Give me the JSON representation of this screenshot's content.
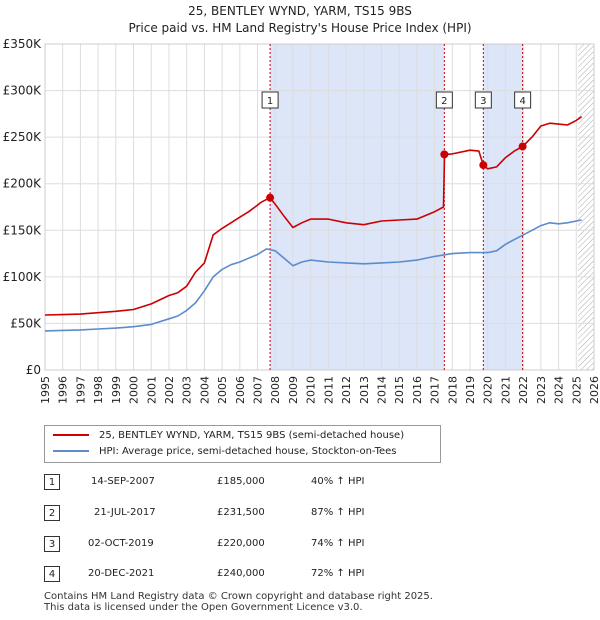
{
  "chart_data": {
    "type": "line",
    "title": "25, BENTLEY WYND, YARM, TS15 9BS",
    "subtitle": "Price paid vs. HM Land Registry's House Price Index (HPI)",
    "xlabel": "",
    "ylabel": "",
    "xlim": [
      1995,
      2026
    ],
    "ylim": [
      0,
      350000
    ],
    "y_ticks": [
      {
        "value": 0,
        "label": "£0"
      },
      {
        "value": 50000,
        "label": "£50K"
      },
      {
        "value": 100000,
        "label": "£100K"
      },
      {
        "value": 150000,
        "label": "£150K"
      },
      {
        "value": 200000,
        "label": "£200K"
      },
      {
        "value": 250000,
        "label": "£250K"
      },
      {
        "value": 300000,
        "label": "£300K"
      },
      {
        "value": 350000,
        "label": "£350K"
      }
    ],
    "x_ticks": [
      "1995",
      "1996",
      "1997",
      "1998",
      "1999",
      "2000",
      "2001",
      "2002",
      "2003",
      "2004",
      "2005",
      "2006",
      "2007",
      "2008",
      "2009",
      "2010",
      "2011",
      "2012",
      "2013",
      "2014",
      "2015",
      "2016",
      "2017",
      "2018",
      "2019",
      "2020",
      "2021",
      "2022",
      "2023",
      "2024",
      "2025",
      "2026"
    ],
    "grid": true,
    "series": [
      {
        "name": "25, BENTLEY WYND, YARM, TS15 9BS (semi-detached house)",
        "color": "#cc0000",
        "x": [
          1995,
          1996,
          1997,
          1998,
          1999,
          2000,
          2001,
          2002,
          2002.5,
          2003,
          2003.5,
          2004,
          2004.5,
          2005,
          2005.5,
          2006,
          2006.5,
          2007,
          2007.2,
          2007.7,
          2008,
          2008.5,
          2009,
          2009.5,
          2010,
          2011,
          2012,
          2013,
          2014,
          2015,
          2016,
          2017,
          2017.5,
          2017.56,
          2018,
          2019,
          2019.5,
          2019.75,
          2020,
          2020.5,
          2021,
          2021.5,
          2021.97,
          2022.5,
          2023,
          2023.5,
          2024,
          2024.5,
          2025,
          2025.3
        ],
        "values": [
          59000,
          59500,
          60000,
          61500,
          63000,
          65000,
          71000,
          80000,
          83000,
          90000,
          105000,
          115000,
          145000,
          152000,
          158000,
          164000,
          170000,
          177000,
          180000,
          185000,
          178000,
          165000,
          153000,
          158000,
          162000,
          162000,
          158000,
          156000,
          160000,
          161000,
          162000,
          170000,
          175000,
          231500,
          232000,
          236000,
          235000,
          220000,
          216000,
          218000,
          228000,
          235000,
          240000,
          250000,
          262000,
          265000,
          264000,
          263000,
          268000,
          272000
        ]
      },
      {
        "name": "HPI: Average price, semi-detached house, Stockton-on-Tees",
        "color": "#5b8ccc",
        "x": [
          1995,
          1996,
          1997,
          1998,
          1999,
          2000,
          2001,
          2002,
          2002.5,
          2003,
          2003.5,
          2004,
          2004.5,
          2005,
          2005.5,
          2006,
          2006.5,
          2007,
          2007.5,
          2008,
          2008.5,
          2009,
          2009.5,
          2010,
          2011,
          2012,
          2013,
          2014,
          2015,
          2016,
          2017,
          2018,
          2019,
          2020,
          2020.5,
          2021,
          2021.5,
          2022,
          2022.5,
          2023,
          2023.5,
          2024,
          2024.5,
          2025,
          2025.3
        ],
        "values": [
          42000,
          42500,
          43000,
          44000,
          45000,
          46500,
          49000,
          55000,
          58000,
          64000,
          72000,
          85000,
          100000,
          108000,
          113000,
          116000,
          120000,
          124000,
          130000,
          128000,
          120000,
          112000,
          116000,
          118000,
          116000,
          115000,
          114000,
          115000,
          116000,
          118000,
          122000,
          125000,
          126000,
          126000,
          128000,
          135000,
          140000,
          145000,
          150000,
          155000,
          158000,
          157000,
          158000,
          160000,
          161000
        ]
      }
    ],
    "shaded_periods": [
      {
        "from": 2007.71,
        "to": 2017.55,
        "color": "#dde5f8"
      },
      {
        "from": 2019.75,
        "to": 2021.97,
        "color": "#dde5f8"
      },
      {
        "from": 2025.1,
        "to": 2026,
        "pattern": "hatch"
      }
    ],
    "markers": [
      {
        "label": "1",
        "x": 2007.71,
        "y": 185000
      },
      {
        "label": "2",
        "x": 2017.55,
        "y": 231500
      },
      {
        "label": "3",
        "x": 2019.75,
        "y": 220000
      },
      {
        "label": "4",
        "x": 2021.97,
        "y": 240000
      }
    ],
    "legend_placement": "below-chart"
  },
  "legend": {
    "property_label": "25, BENTLEY WYND, YARM, TS15 9BS (semi-detached house)",
    "hpi_label": "HPI: Average price, semi-detached house, Stockton-on-Tees"
  },
  "transactions": [
    {
      "num": "1",
      "date": "14-SEP-2007",
      "price": "£185,000",
      "delta": "40% ↑ HPI"
    },
    {
      "num": "2",
      "date": "21-JUL-2017",
      "price": "£231,500",
      "delta": "87% ↑ HPI"
    },
    {
      "num": "3",
      "date": "02-OCT-2019",
      "price": "£220,000",
      "delta": "74% ↑ HPI"
    },
    {
      "num": "4",
      "date": "20-DEC-2021",
      "price": "£240,000",
      "delta": "72% ↑ HPI"
    }
  ],
  "footer": {
    "line1": "Contains HM Land Registry data © Crown copyright and database right 2025.",
    "line2": "This data is licensed under the Open Government Licence v3.0."
  }
}
